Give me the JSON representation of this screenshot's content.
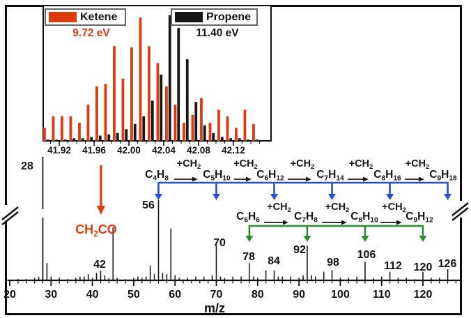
{
  "figure": {
    "kind": "photoionization mass spectrum with high-resolution inset",
    "background": "#ffffff",
    "border_color": "#0a0a0a"
  },
  "colors": {
    "ketene_red": "#dd3a10",
    "propene_black": "#161616",
    "chain_blue": "#2a4fc9",
    "chain_green": "#2e8b31",
    "peak_black": "#1a1a1a"
  },
  "chart_data": [
    {
      "id": "inset_high_resolution_m42",
      "type": "bar",
      "title": "",
      "xlabel": "",
      "ylabel": "",
      "grid": false,
      "legend_position": "top-inside",
      "xlim": [
        41.898,
        42.162
      ],
      "x_tick_labels": [
        "41.92",
        "41.96",
        "42.00",
        "42.04",
        "42.08",
        "42.12"
      ],
      "x_ticks": [
        41.92,
        41.96,
        42.0,
        42.04,
        42.08,
        42.12
      ],
      "x_minor_tick_step": 0.01,
      "x": [
        41.905,
        41.915,
        41.925,
        41.935,
        41.945,
        41.955,
        41.965,
        41.975,
        41.985,
        41.995,
        42.005,
        42.015,
        42.025,
        42.035,
        42.045,
        42.055,
        42.065,
        42.075,
        42.085,
        42.095,
        42.105,
        42.115,
        42.125,
        42.135,
        42.145
      ],
      "series": [
        {
          "name": "Ketene",
          "photon_energy": "9.72 eV",
          "color": "#dd3a10",
          "values": [
            10,
            19,
            19,
            19,
            14,
            28,
            42,
            44,
            73,
            48,
            72,
            95,
            73,
            60,
            42,
            28,
            14,
            20,
            33,
            14,
            24,
            19,
            10,
            24,
            13
          ]
        },
        {
          "name": "Propene",
          "photon_energy": "11.40 eV",
          "color": "#161616",
          "values": [
            1,
            1,
            1,
            2,
            2,
            3,
            4,
            5,
            6,
            9,
            13,
            19,
            31,
            51,
            97,
            87,
            63,
            30,
            12,
            6,
            3,
            2,
            2,
            1,
            1
          ]
        }
      ]
    },
    {
      "id": "main_mass_spectrum",
      "type": "stick-spectrum",
      "xlabel": "m/z",
      "ylabel": "",
      "grid": false,
      "xlim": [
        20,
        128.5
      ],
      "x_major_ticks": [
        20,
        30,
        40,
        50,
        60,
        70,
        80,
        90,
        100,
        110,
        120
      ],
      "x_major_tick_labels": [
        "20",
        "30",
        "40",
        "50",
        "60",
        "70",
        "80",
        "90",
        "100",
        "110",
        "120"
      ],
      "x_minor_tick_step": 2,
      "y_axis_break": true,
      "peaks": [
        [
          22,
          1
        ],
        [
          24,
          1
        ],
        [
          26,
          2
        ],
        [
          27,
          3
        ],
        [
          28,
          100
        ],
        [
          29,
          14
        ],
        [
          30,
          3
        ],
        [
          32,
          2
        ],
        [
          34,
          1
        ],
        [
          36,
          2
        ],
        [
          37,
          3
        ],
        [
          38,
          3
        ],
        [
          39,
          5
        ],
        [
          40,
          2
        ],
        [
          41,
          6
        ],
        [
          42,
          8
        ],
        [
          43,
          4
        ],
        [
          44,
          2
        ],
        [
          45,
          43
        ],
        [
          46,
          2
        ],
        [
          48,
          1
        ],
        [
          50,
          2
        ],
        [
          51,
          3
        ],
        [
          52,
          2
        ],
        [
          53,
          3
        ],
        [
          54,
          12
        ],
        [
          55,
          5
        ],
        [
          56,
          65
        ],
        [
          57,
          6
        ],
        [
          58,
          5
        ],
        [
          59,
          42
        ],
        [
          60,
          4
        ],
        [
          61,
          2
        ],
        [
          63,
          2
        ],
        [
          65,
          3
        ],
        [
          67,
          3
        ],
        [
          69,
          4
        ],
        [
          70,
          28
        ],
        [
          71,
          3
        ],
        [
          72,
          2
        ],
        [
          74,
          3
        ],
        [
          76,
          3
        ],
        [
          78,
          14
        ],
        [
          79,
          3
        ],
        [
          80,
          2
        ],
        [
          82,
          8
        ],
        [
          84,
          8
        ],
        [
          85,
          3
        ],
        [
          86,
          3
        ],
        [
          88,
          3
        ],
        [
          90,
          2
        ],
        [
          91,
          4
        ],
        [
          92,
          28
        ],
        [
          93,
          4
        ],
        [
          94,
          3
        ],
        [
          96,
          7
        ],
        [
          98,
          8
        ],
        [
          100,
          2
        ],
        [
          102,
          2
        ],
        [
          104,
          3
        ],
        [
          106,
          15
        ],
        [
          108,
          2
        ],
        [
          110,
          3
        ],
        [
          112,
          7
        ],
        [
          114,
          2
        ],
        [
          116,
          2
        ],
        [
          118,
          1
        ],
        [
          120,
          7
        ],
        [
          122,
          2
        ],
        [
          124,
          2
        ],
        [
          126,
          9
        ]
      ],
      "base_peak": {
        "mz": 28,
        "label": "28",
        "offscale_axis_break": true
      },
      "labeled_peaks": [
        {
          "mz": 28,
          "label": "28"
        },
        {
          "mz": 42,
          "label": "42"
        },
        {
          "mz": 56,
          "label": "56"
        },
        {
          "mz": 70,
          "label": "70"
        },
        {
          "mz": 78,
          "label": "78"
        },
        {
          "mz": 84,
          "label": "84"
        },
        {
          "mz": 92,
          "label": "92"
        },
        {
          "mz": 98,
          "label": "98"
        },
        {
          "mz": 106,
          "label": "106"
        },
        {
          "mz": 112,
          "label": "112"
        },
        {
          "mz": 120,
          "label": "120"
        },
        {
          "mz": 126,
          "label": "126"
        }
      ],
      "annotations": {
        "ketene_marker": {
          "formula": "CH2CO",
          "mz": 42,
          "color": "#dd3a10"
        },
        "alkene_chain": {
          "color": "#2a4fc9",
          "step_label": "+CH2",
          "species": [
            "C4H8",
            "C5H10",
            "C6H12",
            "C7H14",
            "C8H16",
            "C9H18"
          ],
          "target_mz": [
            56,
            70,
            84,
            98,
            112,
            126
          ]
        },
        "aromatic_chain": {
          "color": "#2e8b31",
          "step_label": "+CH2",
          "species": [
            "C6H6",
            "C7H8",
            "C8H10",
            "C9H12"
          ],
          "target_mz": [
            78,
            92,
            106,
            120
          ]
        }
      }
    }
  ]
}
